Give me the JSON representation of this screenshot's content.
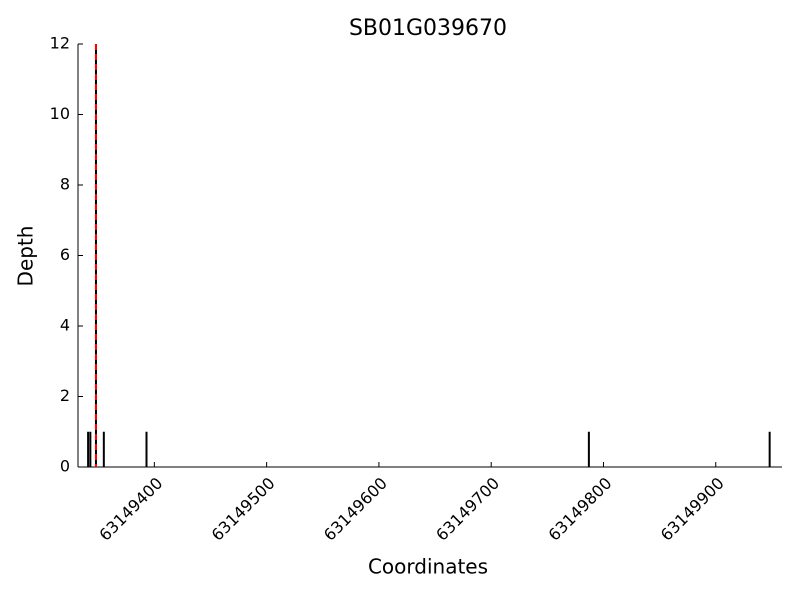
{
  "chart_data": {
    "type": "stem",
    "title": "SB01G039670",
    "x_label": "Coordinates",
    "y_label": "Depth",
    "x": [
      63149341,
      63149343,
      63149348,
      63149355,
      63149393,
      63149787,
      63149948
    ],
    "values": [
      1,
      1,
      12,
      1,
      1,
      1,
      1
    ],
    "color": "#000000",
    "marker_line": {
      "x": 63149348,
      "color": "#ff0000"
    },
    "xlim": [
      63149332,
      63149959
    ],
    "xticks": [
      63149400,
      63149500,
      63149600,
      63149700,
      63149800,
      63149900
    ],
    "ylim": [
      0,
      12
    ],
    "yticks": [
      0,
      2,
      4,
      6,
      8,
      10,
      12
    ]
  }
}
